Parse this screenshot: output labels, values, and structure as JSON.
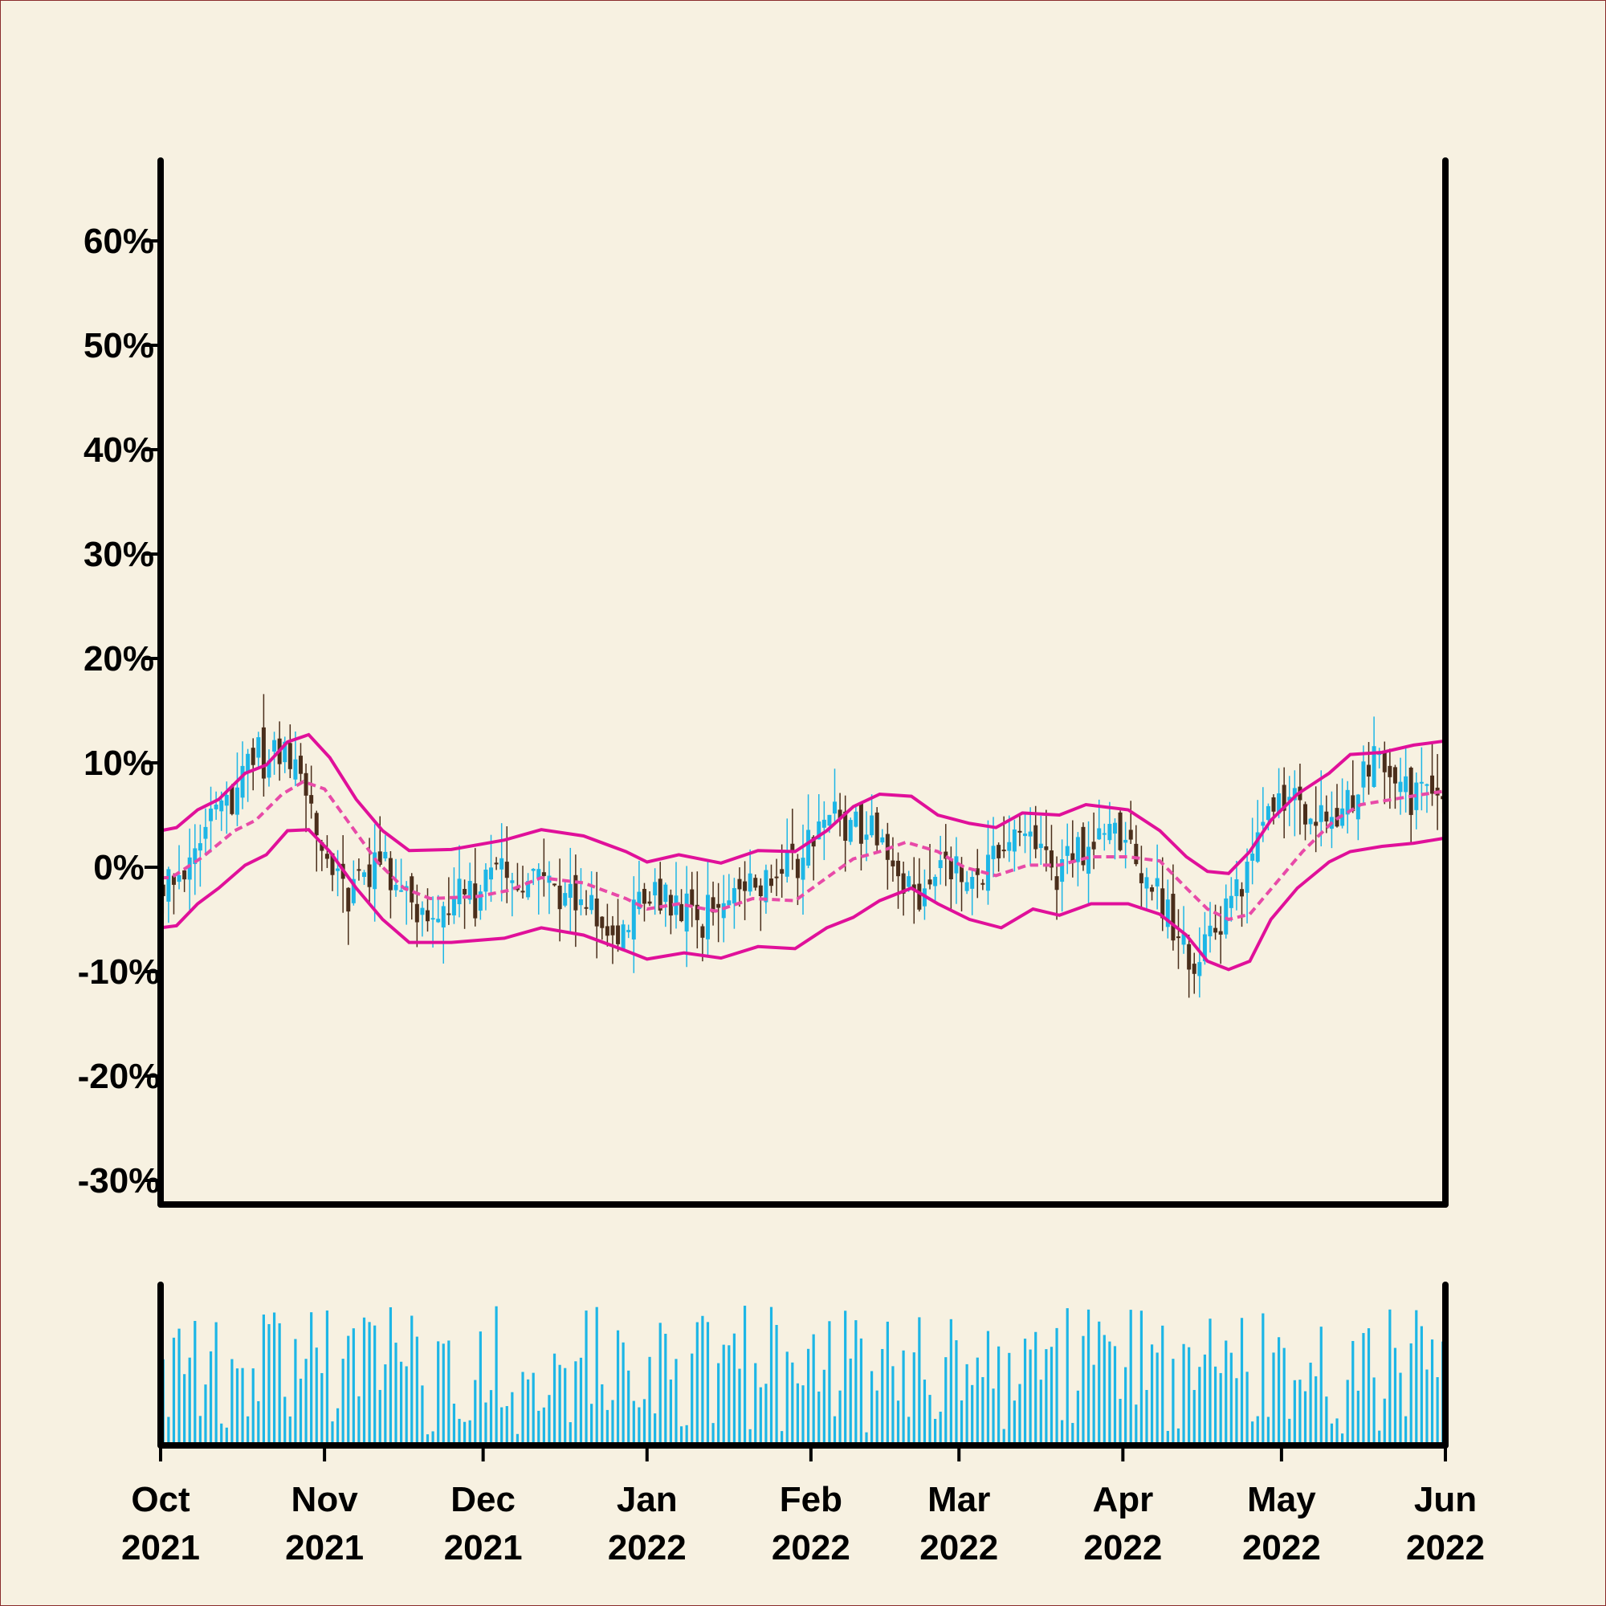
{
  "chart_data": {
    "type": "candlestick",
    "title": "",
    "xlabel": "",
    "ylabel": "",
    "ylim": [
      -32,
      68
    ],
    "y_ticks": [
      60,
      50,
      40,
      30,
      20,
      10,
      0,
      -10,
      -20,
      -30
    ],
    "y_tick_labels": [
      "60%",
      "50%",
      "40%",
      "30%",
      "20%",
      "10%",
      "0%",
      "-10%",
      "-20%",
      "-30%"
    ],
    "x_range": [
      "2021-10-01",
      "2022-06-01"
    ],
    "x_ticks": [
      {
        "date": "2021-10-01",
        "month": "Oct",
        "year": "2021"
      },
      {
        "date": "2021-11-01",
        "month": "Nov",
        "year": "2021"
      },
      {
        "date": "2021-12-01",
        "month": "Dec",
        "year": "2021"
      },
      {
        "date": "2022-01-01",
        "month": "Jan",
        "year": "2022"
      },
      {
        "date": "2022-02-01",
        "month": "Feb",
        "year": "2022"
      },
      {
        "date": "2022-03-01",
        "month": "Mar",
        "year": "2022"
      },
      {
        "date": "2022-04-01",
        "month": "Apr",
        "year": "2022"
      },
      {
        "date": "2022-05-01",
        "month": "May",
        "year": "2022"
      },
      {
        "date": "2022-06-01",
        "month": "Jun",
        "year": "2022"
      }
    ],
    "close_path": [
      [
        "2021-10-01",
        -1
      ],
      [
        "2021-10-05",
        -1
      ],
      [
        "2021-10-10",
        3
      ],
      [
        "2021-10-15",
        7
      ],
      [
        "2021-10-18",
        11
      ],
      [
        "2021-10-22",
        10
      ],
      [
        "2021-10-26",
        11
      ],
      [
        "2021-10-30",
        5
      ],
      [
        "2021-11-03",
        -1
      ],
      [
        "2021-11-07",
        -3
      ],
      [
        "2021-11-11",
        1
      ],
      [
        "2021-11-15",
        -1
      ],
      [
        "2021-11-20",
        -5
      ],
      [
        "2021-11-25",
        -3
      ],
      [
        "2021-11-30",
        -3
      ],
      [
        "2021-12-05",
        -1
      ],
      [
        "2021-12-10",
        -1
      ],
      [
        "2021-12-15",
        -3
      ],
      [
        "2021-12-20",
        -3
      ],
      [
        "2021-12-25",
        -6
      ],
      [
        "2021-12-28",
        -6
      ],
      [
        "2022-01-02",
        -2
      ],
      [
        "2022-01-07",
        -3
      ],
      [
        "2022-01-12",
        -5
      ],
      [
        "2022-01-17",
        -3
      ],
      [
        "2022-01-22",
        -2
      ],
      [
        "2022-01-27",
        -1
      ],
      [
        "2022-02-01",
        2
      ],
      [
        "2022-02-05",
        6
      ],
      [
        "2022-02-09",
        4
      ],
      [
        "2022-02-13",
        3
      ],
      [
        "2022-02-18",
        -1
      ],
      [
        "2022-02-23",
        -3
      ],
      [
        "2022-02-27",
        1
      ],
      [
        "2022-03-04",
        -2
      ],
      [
        "2022-03-09",
        2
      ],
      [
        "2022-03-14",
        3
      ],
      [
        "2022-03-19",
        -1
      ],
      [
        "2022-03-24",
        1
      ],
      [
        "2022-03-29",
        4
      ],
      [
        "2022-04-03",
        2
      ],
      [
        "2022-04-08",
        -2
      ],
      [
        "2022-04-12",
        -7
      ],
      [
        "2022-04-16",
        -9
      ],
      [
        "2022-04-21",
        -4
      ],
      [
        "2022-04-25",
        -1
      ],
      [
        "2022-04-29",
        4
      ],
      [
        "2022-05-03",
        7
      ],
      [
        "2022-05-07",
        4
      ],
      [
        "2022-05-11",
        4
      ],
      [
        "2022-05-16",
        8
      ],
      [
        "2022-05-20",
        11
      ],
      [
        "2022-05-24",
        7
      ],
      [
        "2022-05-28",
        7
      ],
      [
        "2022-06-01",
        7
      ]
    ],
    "bollinger": {
      "upper": [
        [
          "2021-10-01",
          3.5
        ],
        [
          "2021-10-04",
          3.8
        ],
        [
          "2021-10-08",
          5.5
        ],
        [
          "2021-10-12",
          6.5
        ],
        [
          "2021-10-17",
          9.0
        ],
        [
          "2021-10-21",
          9.8
        ],
        [
          "2021-10-25",
          12.0
        ],
        [
          "2021-10-29",
          12.7
        ],
        [
          "2021-11-02",
          10.5
        ],
        [
          "2021-11-07",
          6.5
        ],
        [
          "2021-11-12",
          3.5
        ],
        [
          "2021-11-17",
          1.6
        ],
        [
          "2021-11-25",
          1.7
        ],
        [
          "2021-12-05",
          2.6
        ],
        [
          "2021-12-12",
          3.6
        ],
        [
          "2021-12-20",
          3.0
        ],
        [
          "2021-12-28",
          1.5
        ],
        [
          "2022-01-01",
          0.5
        ],
        [
          "2022-01-07",
          1.2
        ],
        [
          "2022-01-15",
          0.4
        ],
        [
          "2022-01-22",
          1.6
        ],
        [
          "2022-01-29",
          1.5
        ],
        [
          "2022-02-04",
          3.5
        ],
        [
          "2022-02-09",
          5.8
        ],
        [
          "2022-02-14",
          7.0
        ],
        [
          "2022-02-20",
          6.8
        ],
        [
          "2022-02-25",
          5.0
        ],
        [
          "2022-03-03",
          4.2
        ],
        [
          "2022-03-08",
          3.8
        ],
        [
          "2022-03-13",
          5.2
        ],
        [
          "2022-03-20",
          5.0
        ],
        [
          "2022-03-25",
          6.0
        ],
        [
          "2022-04-02",
          5.5
        ],
        [
          "2022-04-08",
          3.5
        ],
        [
          "2022-04-13",
          1.0
        ],
        [
          "2022-04-17",
          -0.4
        ],
        [
          "2022-04-21",
          -0.6
        ],
        [
          "2022-04-25",
          1.5
        ],
        [
          "2022-04-29",
          4.5
        ],
        [
          "2022-05-04",
          7.0
        ],
        [
          "2022-05-10",
          9.0
        ],
        [
          "2022-05-14",
          10.8
        ],
        [
          "2022-05-20",
          11.0
        ],
        [
          "2022-05-26",
          11.7
        ],
        [
          "2022-06-01",
          12.1
        ]
      ],
      "middle": [
        [
          "2021-10-01",
          -1.0
        ],
        [
          "2021-10-03",
          -1.0
        ],
        [
          "2021-10-09",
          1.0
        ],
        [
          "2021-10-15",
          3.5
        ],
        [
          "2021-10-19",
          4.5
        ],
        [
          "2021-10-24",
          7.0
        ],
        [
          "2021-10-28",
          8.2
        ],
        [
          "2021-11-01",
          7.5
        ],
        [
          "2021-11-06",
          4.0
        ],
        [
          "2021-11-11",
          0.5
        ],
        [
          "2021-11-16",
          -2.0
        ],
        [
          "2021-11-21",
          -3.0
        ],
        [
          "2021-11-30",
          -2.8
        ],
        [
          "2021-12-06",
          -2.2
        ],
        [
          "2021-12-12",
          -1.0
        ],
        [
          "2021-12-20",
          -1.5
        ],
        [
          "2021-12-28",
          -3.0
        ],
        [
          "2022-01-01",
          -4.0
        ],
        [
          "2022-01-07",
          -3.5
        ],
        [
          "2022-01-14",
          -4.2
        ],
        [
          "2022-01-21",
          -3.0
        ],
        [
          "2022-01-29",
          -3.2
        ],
        [
          "2022-02-04",
          -1.0
        ],
        [
          "2022-02-09",
          0.8
        ],
        [
          "2022-02-14",
          1.5
        ],
        [
          "2022-02-19",
          2.4
        ],
        [
          "2022-02-25",
          1.5
        ],
        [
          "2022-03-02",
          0.0
        ],
        [
          "2022-03-08",
          -0.8
        ],
        [
          "2022-03-14",
          0.2
        ],
        [
          "2022-03-20",
          0.2
        ],
        [
          "2022-03-26",
          1.0
        ],
        [
          "2022-04-02",
          1.0
        ],
        [
          "2022-04-08",
          0.6
        ],
        [
          "2022-04-13",
          -2.0
        ],
        [
          "2022-04-17",
          -4.0
        ],
        [
          "2022-04-21",
          -5.0
        ],
        [
          "2022-04-25",
          -4.5
        ],
        [
          "2022-04-30",
          -1.5
        ],
        [
          "2022-05-05",
          1.5
        ],
        [
          "2022-05-11",
          4.5
        ],
        [
          "2022-05-16",
          6.0
        ],
        [
          "2022-05-22",
          6.5
        ],
        [
          "2022-05-28",
          7.0
        ],
        [
          "2022-06-01",
          7.3
        ]
      ],
      "lower": [
        [
          "2021-10-01",
          -5.8
        ],
        [
          "2021-10-04",
          -5.6
        ],
        [
          "2021-10-08",
          -3.5
        ],
        [
          "2021-10-12",
          -2.0
        ],
        [
          "2021-10-17",
          0.2
        ],
        [
          "2021-10-21",
          1.2
        ],
        [
          "2021-10-25",
          3.5
        ],
        [
          "2021-10-29",
          3.6
        ],
        [
          "2021-11-02",
          1.5
        ],
        [
          "2021-11-07",
          -2.0
        ],
        [
          "2021-11-12",
          -5.0
        ],
        [
          "2021-11-17",
          -7.2
        ],
        [
          "2021-11-25",
          -7.2
        ],
        [
          "2021-12-05",
          -6.8
        ],
        [
          "2021-12-12",
          -5.8
        ],
        [
          "2021-12-20",
          -6.5
        ],
        [
          "2021-12-28",
          -8.0
        ],
        [
          "2022-01-01",
          -8.8
        ],
        [
          "2022-01-08",
          -8.2
        ],
        [
          "2022-01-15",
          -8.7
        ],
        [
          "2022-01-22",
          -7.6
        ],
        [
          "2022-01-29",
          -7.8
        ],
        [
          "2022-02-04",
          -5.8
        ],
        [
          "2022-02-09",
          -4.8
        ],
        [
          "2022-02-14",
          -3.2
        ],
        [
          "2022-02-20",
          -2.0
        ],
        [
          "2022-02-25",
          -3.5
        ],
        [
          "2022-03-03",
          -5.0
        ],
        [
          "2022-03-09",
          -5.8
        ],
        [
          "2022-03-15",
          -4.0
        ],
        [
          "2022-03-20",
          -4.6
        ],
        [
          "2022-03-26",
          -3.5
        ],
        [
          "2022-04-02",
          -3.5
        ],
        [
          "2022-04-08",
          -4.5
        ],
        [
          "2022-04-13",
          -6.5
        ],
        [
          "2022-04-17",
          -9.0
        ],
        [
          "2022-04-21",
          -9.8
        ],
        [
          "2022-04-25",
          -9.0
        ],
        [
          "2022-04-29",
          -5.0
        ],
        [
          "2022-05-04",
          -2.0
        ],
        [
          "2022-05-10",
          0.5
        ],
        [
          "2022-05-14",
          1.5
        ],
        [
          "2022-05-20",
          2.0
        ],
        [
          "2022-05-26",
          2.3
        ],
        [
          "2022-06-01",
          2.8
        ]
      ]
    },
    "volume": {
      "seed": 20211001,
      "range": [
        0,
        1
      ]
    },
    "grid": false,
    "legend": "none"
  },
  "colors": {
    "background": "#f7f1e1",
    "frame_border": "#8a2b2b",
    "axis": "#000000",
    "up_candle": "#1db6e6",
    "down_candle": "#4a2e1b",
    "bands": "#e0109a",
    "volume": "#1db6e6"
  }
}
